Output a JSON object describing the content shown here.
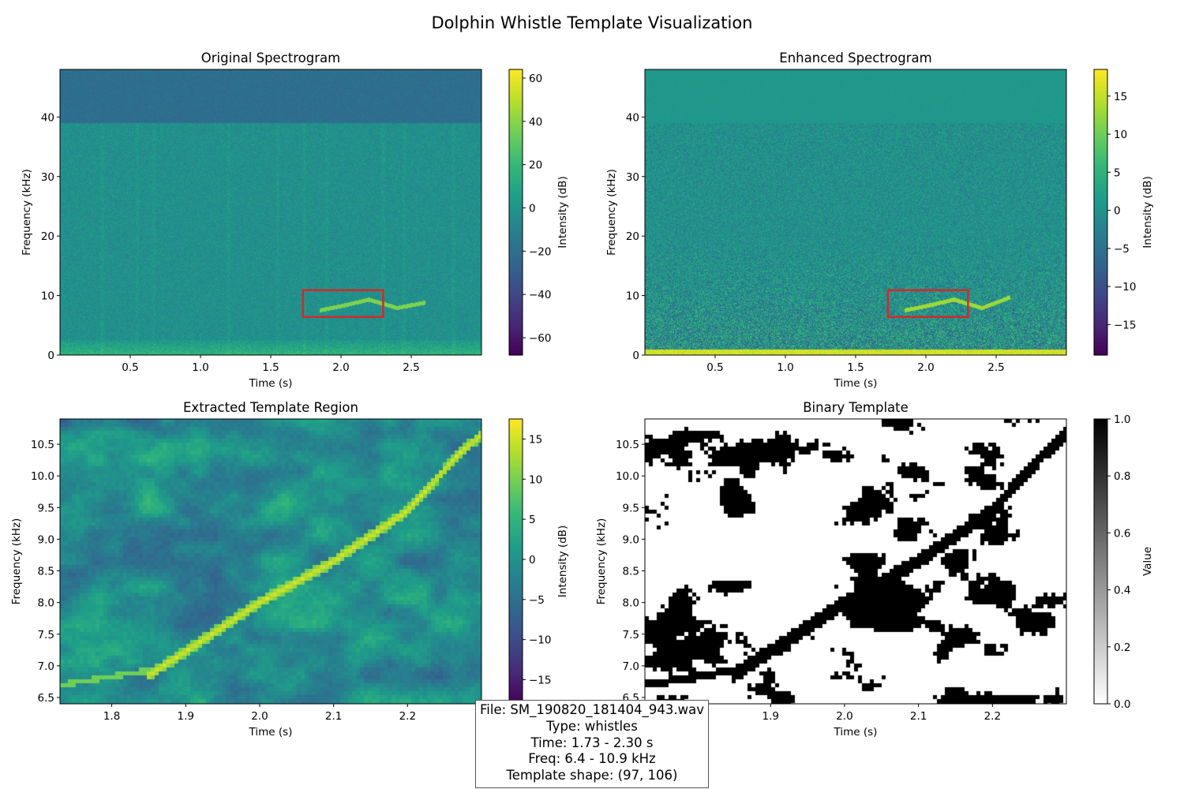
{
  "figure": {
    "suptitle": "Dolphin Whistle Template Visualization"
  },
  "colors": {
    "box_edge": "#d62728",
    "viridis_low": "#440154",
    "viridis_high": "#fde725"
  },
  "info": {
    "file": "File: SM_190820_181404_943.wav",
    "type": "Type: whistles",
    "time": "Time: 1.73 - 2.30 s",
    "freq": "Freq: 6.4 - 10.9 kHz",
    "shape": "Template shape: (97, 106)"
  },
  "chart_data": [
    {
      "type": "heatmap",
      "title": "Original Spectrogram",
      "xlabel": "Time (s)",
      "ylabel": "Frequency (kHz)",
      "xlim": [
        0.0,
        3.0
      ],
      "ylim": [
        0,
        48
      ],
      "xticks": [
        0.5,
        1.0,
        1.5,
        2.0,
        2.5
      ],
      "xticklabels": [
        "0.5",
        "1.0",
        "1.5",
        "2.0",
        "2.5"
      ],
      "yticks": [
        0,
        10,
        20,
        30,
        40
      ],
      "yticklabels": [
        "0",
        "10",
        "20",
        "30",
        "40"
      ],
      "colormap": "viridis",
      "colorbar": {
        "label": "Intensity (dB)",
        "range": [
          -68,
          64
        ],
        "ticks": [
          -60,
          -40,
          -20,
          0,
          20,
          40,
          60
        ],
        "ticklabels": [
          "−60",
          "−40",
          "−20",
          "0",
          "20",
          "40",
          "60"
        ]
      },
      "highlight_box": {
        "x": [
          1.73,
          2.3
        ],
        "y": [
          6.4,
          10.9
        ]
      },
      "whistle_contour": [
        [
          1.85,
          7.5
        ],
        [
          2.0,
          8.2
        ],
        [
          2.2,
          9.3
        ],
        [
          2.4,
          7.9
        ],
        [
          2.6,
          8.8
        ]
      ]
    },
    {
      "type": "heatmap",
      "title": "Enhanced Spectrogram",
      "xlabel": "Time (s)",
      "ylabel": "Frequency (kHz)",
      "xlim": [
        0.0,
        3.0
      ],
      "ylim": [
        0,
        48
      ],
      "xticks": [
        0.5,
        1.0,
        1.5,
        2.0,
        2.5
      ],
      "xticklabels": [
        "0.5",
        "1.0",
        "1.5",
        "2.0",
        "2.5"
      ],
      "yticks": [
        0,
        10,
        20,
        30,
        40
      ],
      "yticklabels": [
        "0",
        "10",
        "20",
        "30",
        "40"
      ],
      "colormap": "viridis",
      "colorbar": {
        "label": "Intensity (dB)",
        "range": [
          -19,
          18.5
        ],
        "ticks": [
          -15,
          -10,
          -5,
          0,
          5,
          10,
          15
        ],
        "ticklabels": [
          "−15",
          "−10",
          "−5",
          "0",
          "5",
          "10",
          "15"
        ]
      },
      "highlight_box": {
        "x": [
          1.73,
          2.3
        ],
        "y": [
          6.4,
          10.9
        ]
      },
      "whistle_contour": [
        [
          1.85,
          7.5
        ],
        [
          2.0,
          8.2
        ],
        [
          2.2,
          9.3
        ],
        [
          2.4,
          7.9
        ],
        [
          2.6,
          9.7
        ]
      ]
    },
    {
      "type": "heatmap",
      "title": "Extracted Template Region",
      "xlabel": "Time (s)",
      "ylabel": "Frequency (kHz)",
      "xlim": [
        1.73,
        2.3
      ],
      "ylim": [
        6.4,
        10.9
      ],
      "xticks": [
        1.8,
        1.9,
        2.0,
        2.1,
        2.2
      ],
      "xticklabels": [
        "1.8",
        "1.9",
        "2.0",
        "2.1",
        "2.2"
      ],
      "yticks": [
        6.5,
        7.0,
        7.5,
        8.0,
        8.5,
        9.0,
        9.5,
        10.0,
        10.5
      ],
      "yticklabels": [
        "6.5",
        "7.0",
        "7.5",
        "8.0",
        "8.5",
        "9.0",
        "9.5",
        "10.0",
        "10.5"
      ],
      "colormap": "viridis",
      "colorbar": {
        "label": "Intensity (dB)",
        "range": [
          -18,
          17.5
        ],
        "ticks": [
          -15,
          -10,
          -5,
          0,
          5,
          10,
          15
        ],
        "ticklabels": [
          "−15",
          "−10",
          "−5",
          "0",
          "5",
          "10",
          "15"
        ]
      },
      "whistle_contour": [
        [
          1.85,
          6.85
        ],
        [
          1.91,
          7.3
        ],
        [
          2.0,
          8.0
        ],
        [
          2.1,
          8.65
        ],
        [
          2.2,
          9.45
        ],
        [
          2.27,
          10.35
        ],
        [
          2.3,
          10.65
        ]
      ]
    },
    {
      "type": "heatmap",
      "title": "Binary Template",
      "xlabel": "Time (s)",
      "ylabel": "Frequency (kHz)",
      "xlim": [
        1.73,
        2.3
      ],
      "ylim": [
        6.4,
        10.9
      ],
      "xticks": [
        1.8,
        1.9,
        2.0,
        2.1,
        2.2
      ],
      "xticklabels": [
        "1.8",
        "1.9",
        "2.0",
        "2.1",
        "2.2"
      ],
      "yticks": [
        6.5,
        7.0,
        7.5,
        8.0,
        8.5,
        9.0,
        9.5,
        10.0,
        10.5
      ],
      "yticklabels": [
        "6.5",
        "7.0",
        "7.5",
        "8.0",
        "8.5",
        "9.0",
        "9.5",
        "10.0",
        "10.5"
      ],
      "colormap": "gray_r",
      "colorbar": {
        "label": "Value",
        "range": [
          0,
          1
        ],
        "ticks": [
          0,
          0.2,
          0.4,
          0.6,
          0.8,
          1.0
        ],
        "ticklabels": [
          "0.0",
          "0.2",
          "0.4",
          "0.6",
          "0.8",
          "1.0"
        ]
      },
      "whistle_contour": [
        [
          1.85,
          6.85
        ],
        [
          1.91,
          7.3
        ],
        [
          2.0,
          8.0
        ],
        [
          2.1,
          8.65
        ],
        [
          2.2,
          9.45
        ],
        [
          2.27,
          10.35
        ],
        [
          2.3,
          10.65
        ]
      ]
    }
  ]
}
